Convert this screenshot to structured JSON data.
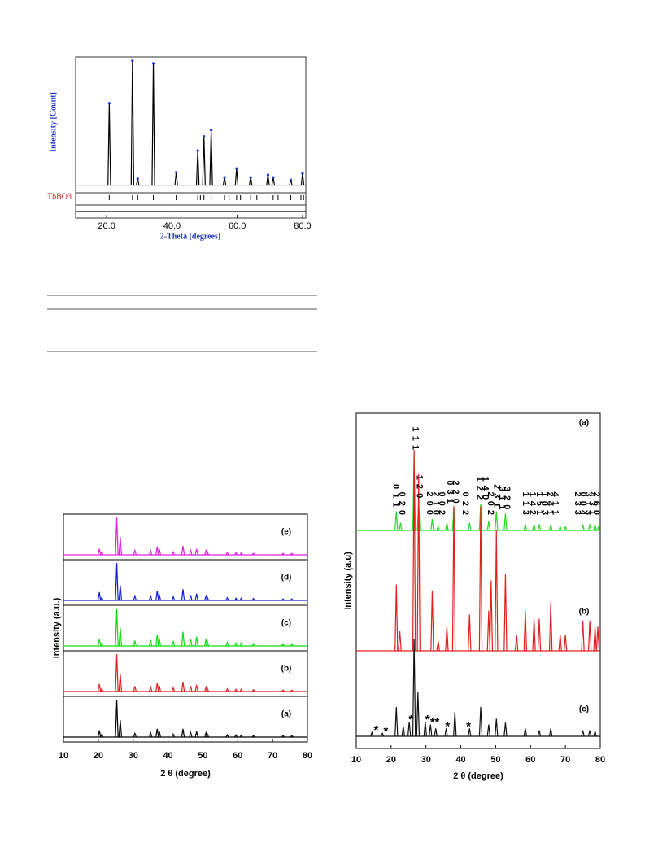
{
  "chart_data": [
    {
      "type": "line",
      "ylabel": "Intensity [Count]",
      "xlabel": "2-Theta [degrees]",
      "phase_label": "TbBO3",
      "xlim": [
        10.5,
        81
      ],
      "xticks": [
        {
          "value": 20,
          "label": "20.0"
        },
        {
          "value": 40,
          "label": "40.0"
        },
        {
          "value": 60,
          "label": "60.0"
        },
        {
          "value": 80,
          "label": "80.0"
        }
      ],
      "ylim": [
        -6,
        100
      ],
      "series": [
        {
          "color": "#000000",
          "marker_color": "#2233cc",
          "peaks_x": [
            20.8,
            27.9,
            29.5,
            34.3,
            41.3,
            47.9,
            49.8,
            52.0,
            56.1,
            59.8,
            64.1,
            69.4,
            71.0,
            76.4,
            80.0
          ],
          "values": [
            64,
            97,
            5,
            95,
            10,
            27,
            38,
            43,
            6,
            13,
            6,
            8,
            6,
            4,
            9
          ]
        }
      ],
      "reflections": [
        20.8,
        27.9,
        29.5,
        34.3,
        41.3,
        47.9,
        48.7,
        49.8,
        52.0,
        56.1,
        57.5,
        59.8,
        61.0,
        64.1,
        66.0,
        69.4,
        71.0,
        72.5,
        76.4,
        79.5,
        80.3
      ]
    },
    {
      "type": "line",
      "ylabel": "Intensity (a.u.)",
      "xlabel": "2 θ (degree)",
      "xlim": [
        10,
        80
      ],
      "xticks": [
        10,
        20,
        30,
        40,
        50,
        60,
        70,
        80
      ],
      "ylim": [
        0,
        100
      ],
      "peaks_x": [
        20.3,
        21.0,
        25.3,
        26.3,
        30.5,
        35.0,
        36.9,
        37.5,
        41.5,
        44.3,
        46.5,
        48.2,
        50.9,
        51.3,
        57.0,
        59.5,
        61.0,
        64.5,
        73.0,
        75.5
      ],
      "series": [
        {
          "name": "(a)",
          "color": "#000000",
          "values": [
            18,
            8,
            100,
            45,
            10,
            12,
            22,
            15,
            8,
            22,
            12,
            15,
            12,
            8,
            6,
            6,
            5,
            4,
            4,
            4
          ]
        },
        {
          "name": "(b)",
          "color": "#e02020",
          "values": [
            20,
            8,
            100,
            48,
            14,
            14,
            22,
            16,
            10,
            26,
            14,
            18,
            12,
            8,
            7,
            6,
            6,
            5,
            4,
            4
          ]
        },
        {
          "name": "(c)",
          "color": "#10dd10",
          "values": [
            18,
            8,
            100,
            48,
            14,
            16,
            30,
            20,
            12,
            38,
            18,
            25,
            18,
            12,
            10,
            8,
            8,
            6,
            6,
            6
          ]
        },
        {
          "name": "(d)",
          "color": "#1020d0",
          "values": [
            22,
            8,
            100,
            40,
            12,
            14,
            26,
            16,
            10,
            30,
            14,
            18,
            12,
            8,
            7,
            6,
            6,
            5,
            4,
            4
          ]
        },
        {
          "name": "(e)",
          "color": "#e020e0",
          "values": [
            16,
            8,
            100,
            48,
            12,
            12,
            22,
            16,
            8,
            24,
            12,
            16,
            12,
            8,
            6,
            6,
            5,
            4,
            4,
            4
          ]
        }
      ]
    },
    {
      "type": "line",
      "ylabel": "Intensity (a.u)",
      "xlabel": "2 θ (degree)",
      "xlim": [
        10,
        80
      ],
      "xticks": [
        10,
        20,
        30,
        40,
        50,
        60,
        70,
        80
      ],
      "ylim": [
        0,
        100
      ],
      "series": [
        {
          "name": "(a)",
          "color": "#22dd22",
          "peaks_x": [
            21.5,
            22.7,
            26.6,
            27.9,
            31.8,
            33.5,
            36,
            38,
            42.5,
            45.7,
            48,
            50.2,
            52.8,
            58.5,
            61,
            62.5,
            65.8,
            68.5,
            70,
            75,
            77,
            78.5,
            79.5
          ],
          "values": [
            25,
            10,
            100,
            37,
            15,
            5,
            10,
            30,
            10,
            35,
            12,
            25,
            22,
            8,
            8,
            8,
            8,
            5,
            5,
            8,
            8,
            8,
            5
          ]
        },
        {
          "name": "(b)",
          "color": "#e02020",
          "peaks_x": [
            21.5,
            22.5,
            26.6,
            27.9,
            31.8,
            33.5,
            36,
            38,
            42.5,
            45.7,
            48,
            48.7,
            50.2,
            52.8,
            56,
            58.5,
            61,
            62.5,
            65.8,
            68.5,
            70,
            75,
            77,
            78.5,
            79.3
          ],
          "values": [
            33,
            10,
            100,
            88,
            30,
            5,
            12,
            72,
            18,
            72,
            20,
            35,
            60,
            38,
            8,
            20,
            16,
            16,
            24,
            8,
            8,
            15,
            15,
            12,
            12
          ]
        },
        {
          "name": "(c)",
          "color": "#111111",
          "peaks_x": [
            14.5,
            17.5,
            21.5,
            23.5,
            25.2,
            26.6,
            27.7,
            29.8,
            31.3,
            32.8,
            35.8,
            38.3,
            42.5,
            45.7,
            48,
            50.2,
            52.8,
            58.5,
            62.5,
            65.8,
            75,
            77,
            78.5
          ],
          "values": [
            4,
            3,
            30,
            10,
            15,
            100,
            45,
            15,
            12,
            8,
            8,
            25,
            8,
            30,
            12,
            18,
            14,
            8,
            6,
            8,
            6,
            6,
            5
          ]
        }
      ],
      "annotations": [
        {
          "text": "0 1 1",
          "x": 21.3
        },
        {
          "text": "0 2 0",
          "x": 23.0
        },
        {
          "text": "1 1 1",
          "x": 26.9
        },
        {
          "text": "1 2 0",
          "x": 28.1
        },
        {
          "text": "2 0 0",
          "x": 31.0
        },
        {
          "text": "2 1 0",
          "x": 32.8
        },
        {
          "text": "0 0 2",
          "x": 34.5
        },
        {
          "text": "0 3 1",
          "x": 36.8
        },
        {
          "text": "2 2 0",
          "x": 38.5
        },
        {
          "text": "0 2 2",
          "x": 41.2
        },
        {
          "text": "1 2 2",
          "x": 45.3
        },
        {
          "text": "1 4 0",
          "x": 47.0
        },
        {
          "text": "2 0 2",
          "x": 48.5
        },
        {
          "text": "2 3 1",
          "x": 50.2
        },
        {
          "text": "3 1 1",
          "x": 51.7
        },
        {
          "text": "3 2 0",
          "x": 53.2
        },
        {
          "text": "1 1 3",
          "x": 58.5
        },
        {
          "text": "1 4 2",
          "x": 60.5
        },
        {
          "text": "1 5 1",
          "x": 62.5
        },
        {
          "text": "1 0 3",
          "x": 64.0
        },
        {
          "text": "2 4 1",
          "x": 65.5
        },
        {
          "text": "4 1 1",
          "x": 67.0
        },
        {
          "text": "2 3 3",
          "x": 73.5
        },
        {
          "text": "0 0 4",
          "x": 75.0
        },
        {
          "text": "3 1 3",
          "x": 76.5
        },
        {
          "text": "4 3 1",
          "x": 77.5
        },
        {
          "text": "2 6 0",
          "x": 78.8
        }
      ],
      "markers": [
        {
          "text": "*",
          "x": 15.0
        },
        {
          "text": "*",
          "x": 17.8
        },
        {
          "text": "*",
          "x": 25.0
        },
        {
          "text": "*",
          "x": 29.8
        },
        {
          "text": "*",
          "x": 31.2
        },
        {
          "text": "*",
          "x": 32.5
        },
        {
          "text": "*",
          "x": 35.5
        },
        {
          "text": "*",
          "x": 41.5
        }
      ]
    }
  ]
}
